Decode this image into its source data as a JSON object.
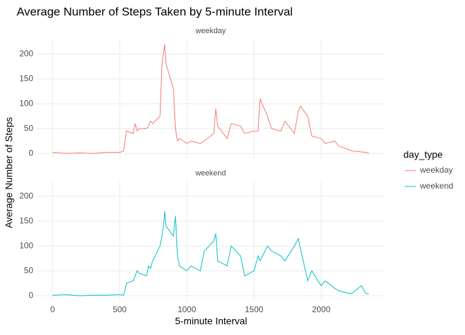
{
  "chart_data": {
    "type": "line",
    "title": "Average Number of Steps Taken by 5-minute Interval",
    "x_label": "5-minute Interval",
    "y_label": "Average Number of Steps",
    "legend_title": "day_type",
    "x": [
      0,
      100,
      200,
      300,
      400,
      500,
      530,
      550,
      600,
      615,
      630,
      645,
      700,
      715,
      730,
      745,
      800,
      815,
      830,
      835,
      845,
      900,
      915,
      930,
      945,
      1000,
      1030,
      1100,
      1130,
      1200,
      1215,
      1230,
      1300,
      1330,
      1400,
      1430,
      1500,
      1530,
      1545,
      1600,
      1630,
      1700,
      1730,
      1800,
      1830,
      1845,
      1900,
      1930,
      2000,
      2030,
      2100,
      2130,
      2200,
      2230,
      2300,
      2330,
      2355
    ],
    "series": [
      {
        "name": "weekday",
        "color": "#f8766d",
        "values": [
          2,
          0,
          1,
          0,
          2,
          2,
          5,
          45,
          40,
          60,
          45,
          50,
          50,
          55,
          65,
          60,
          75,
          180,
          210,
          220,
          180,
          130,
          50,
          25,
          30,
          20,
          25,
          20,
          25,
          40,
          90,
          55,
          30,
          60,
          55,
          40,
          45,
          45,
          110,
          75,
          50,
          45,
          65,
          40,
          85,
          95,
          75,
          35,
          30,
          20,
          25,
          15,
          8,
          5,
          3,
          2,
          1
        ]
      },
      {
        "name": "weekend",
        "color": "#00bfc4",
        "values": [
          1,
          2,
          0,
          1,
          1,
          2,
          1,
          25,
          30,
          40,
          50,
          45,
          40,
          60,
          55,
          70,
          100,
          120,
          150,
          170,
          140,
          120,
          160,
          80,
          60,
          50,
          60,
          50,
          90,
          110,
          125,
          70,
          60,
          100,
          80,
          40,
          50,
          80,
          70,
          100,
          90,
          80,
          70,
          100,
          115,
          95,
          30,
          50,
          20,
          30,
          15,
          10,
          5,
          5,
          20,
          5,
          3
        ]
      }
    ],
    "xlim": [
      -118,
      2473
    ],
    "xticks": [
      0,
      500,
      1000,
      1500,
      2000
    ],
    "ylim": [
      -11,
      231
    ],
    "yticks": [
      0,
      50,
      100,
      150,
      200
    ],
    "grid": true
  }
}
